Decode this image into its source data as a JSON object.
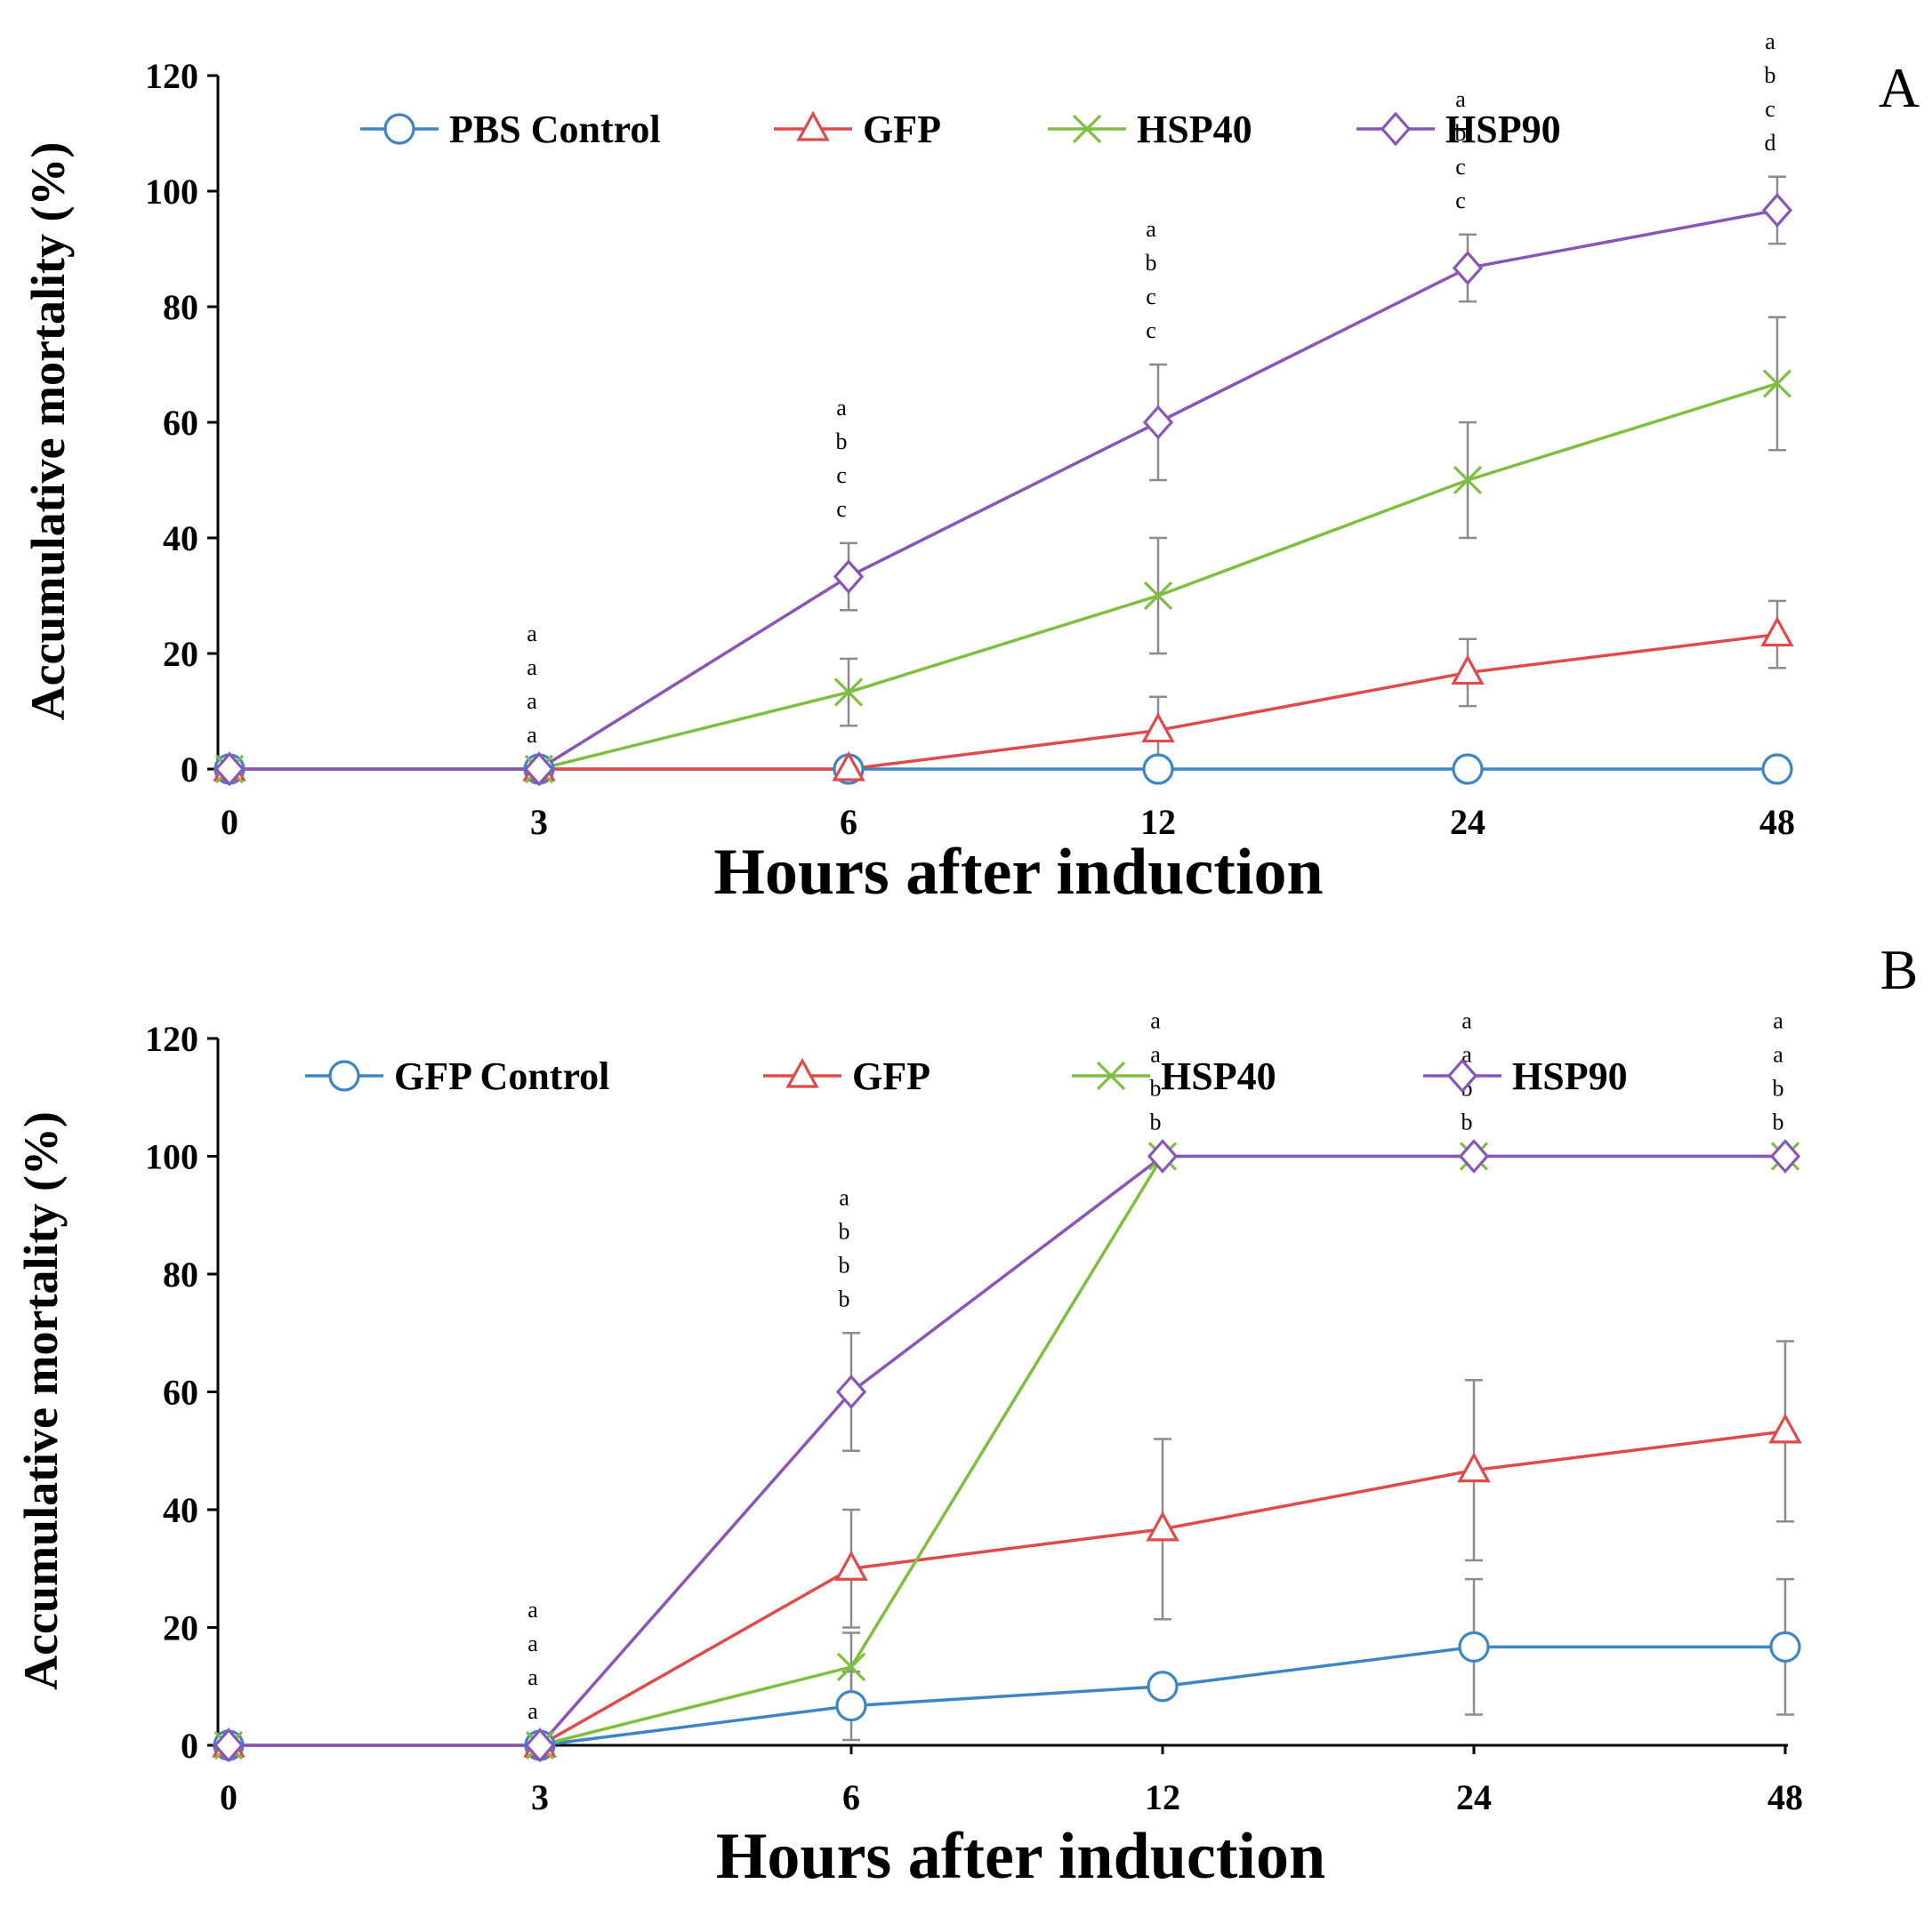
{
  "colors": {
    "control": "#3d86c6",
    "gfp": "#e04a4a",
    "hsp40": "#7fbf3f",
    "hsp90": "#8a55b8",
    "errorbar": "#8c8c8c"
  },
  "chart_data": [
    {
      "panel": "A",
      "type": "line",
      "x_categories": [
        "0",
        "3",
        "6",
        "12",
        "24",
        "48"
      ],
      "xlabel": "Hours after induction",
      "ylabel": "Accumulative mortality (%)",
      "yticks": [
        0,
        20,
        40,
        60,
        80,
        100,
        120
      ],
      "ylim": [
        0,
        120
      ],
      "legend_position": "top",
      "series": [
        {
          "name": "PBS Control",
          "marker": "circle",
          "color": "#3d86c6",
          "values": [
            0,
            0,
            0,
            0,
            0,
            0
          ],
          "errors": [
            0,
            0,
            0,
            0,
            0,
            0
          ]
        },
        {
          "name": "GFP",
          "marker": "triangle",
          "color": "#e04a4a",
          "values": [
            0,
            0,
            0,
            6.7,
            16.7,
            23.3
          ],
          "errors": [
            0,
            0,
            0,
            5.8,
            5.8,
            5.8
          ]
        },
        {
          "name": "HSP40",
          "marker": "x",
          "color": "#7fbf3f",
          "values": [
            0,
            0,
            13.3,
            30,
            50,
            66.7
          ],
          "errors": [
            0,
            0,
            5.8,
            10,
            10,
            11.5
          ]
        },
        {
          "name": "HSP90",
          "marker": "diamond",
          "color": "#8a55b8",
          "values": [
            0,
            0,
            33.3,
            60,
            86.7,
            96.7
          ],
          "errors": [
            0,
            0,
            5.8,
            10,
            5.8,
            5.8
          ]
        }
      ],
      "annotations": [
        {
          "x": "3",
          "letters": [
            "a",
            "a",
            "a",
            "a"
          ]
        },
        {
          "x": "6",
          "letters": [
            "a",
            "b",
            "c",
            "c"
          ]
        },
        {
          "x": "12",
          "letters": [
            "a",
            "b",
            "c",
            "c"
          ]
        },
        {
          "x": "24",
          "letters": [
            "a",
            "b",
            "c",
            "c"
          ]
        },
        {
          "x": "48",
          "letters": [
            "a",
            "b",
            "c",
            "d"
          ]
        }
      ]
    },
    {
      "panel": "B",
      "type": "line",
      "x_categories": [
        "0",
        "3",
        "6",
        "12",
        "24",
        "48"
      ],
      "xlabel": "Hours after induction",
      "ylabel": "Accumulative mortality (%)",
      "yticks": [
        0,
        20,
        40,
        60,
        80,
        100,
        120
      ],
      "ylim": [
        0,
        120
      ],
      "legend_position": "top",
      "series": [
        {
          "name": "GFP Control",
          "marker": "circle",
          "color": "#3d86c6",
          "values": [
            0,
            0,
            6.7,
            10,
            16.7,
            16.7
          ],
          "errors": [
            0,
            0,
            5.8,
            0,
            11.5,
            11.5
          ]
        },
        {
          "name": "GFP",
          "marker": "triangle",
          "color": "#e04a4a",
          "values": [
            0,
            0,
            30,
            36.7,
            46.7,
            53.3
          ],
          "errors": [
            0,
            0,
            10,
            15.3,
            15.3,
            15.3
          ]
        },
        {
          "name": "HSP40",
          "marker": "x",
          "color": "#7fbf3f",
          "values": [
            0,
            0,
            13.3,
            100,
            100,
            100
          ],
          "errors": [
            0,
            0,
            5.8,
            0,
            0,
            0
          ]
        },
        {
          "name": "HSP90",
          "marker": "diamond",
          "color": "#8a55b8",
          "values": [
            0,
            0,
            60,
            100,
            100,
            100
          ],
          "errors": [
            0,
            0,
            10,
            0,
            0,
            0
          ]
        }
      ],
      "annotations": [
        {
          "x": "3",
          "letters": [
            "a",
            "a",
            "a",
            "a"
          ]
        },
        {
          "x": "6",
          "letters": [
            "a",
            "b",
            "b",
            "b"
          ]
        },
        {
          "x": "12",
          "letters": [
            "a",
            "a",
            "b",
            "b"
          ]
        },
        {
          "x": "24",
          "letters": [
            "a",
            "a",
            "b",
            "b"
          ]
        },
        {
          "x": "48",
          "letters": [
            "a",
            "a",
            "b",
            "b"
          ]
        }
      ]
    }
  ]
}
